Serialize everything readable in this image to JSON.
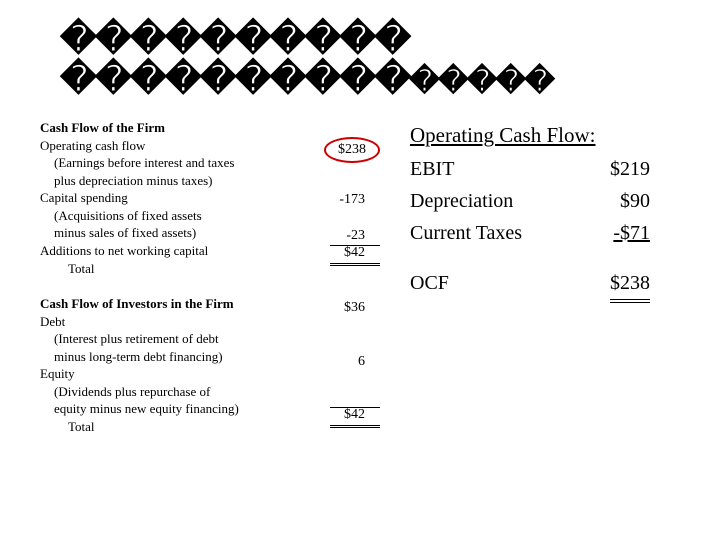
{
  "title": {
    "line1": "����������",
    "line2_a": "����������",
    "line2_b": "�����"
  },
  "left": {
    "section1_header": "Cash Flow of the Firm",
    "ocf": "Operating cash flow",
    "ocf_sub1": "(Earnings before interest and taxes",
    "ocf_sub2": "plus depreciation minus taxes)",
    "capex": "Capital spending",
    "capex_sub1": "(Acquisitions of fixed assets",
    "capex_sub2": "minus sales of fixed assets)",
    "nwc": "Additions to net working capital",
    "total1": "Total",
    "section2_header": "Cash Flow of Investors in the Firm",
    "debt": "Debt",
    "debt_sub1": "(Interest plus retirement of debt",
    "debt_sub2": "minus long-term debt financing)",
    "equity": "Equity",
    "equity_sub1": "(Dividends plus repurchase of",
    "equity_sub2": "equity minus new equity financing)",
    "total2": "Total"
  },
  "nums": {
    "ocf": "$238",
    "capex": "-173",
    "nwc": "-23",
    "total1": "$42",
    "debt": "$36",
    "equity": "6",
    "total2": "$42"
  },
  "right": {
    "header": "Operating Cash Flow:",
    "ebit_label": "EBIT",
    "ebit_val": "$219",
    "dep_label": "Depreciation",
    "dep_val": "$90",
    "tax_label": "Current Taxes",
    "tax_val": "-$71",
    "ocf_label": "OCF",
    "ocf_val": "$238"
  },
  "colors": {
    "circle": "#cc0000",
    "text": "#000000",
    "bg": "#ffffff"
  }
}
